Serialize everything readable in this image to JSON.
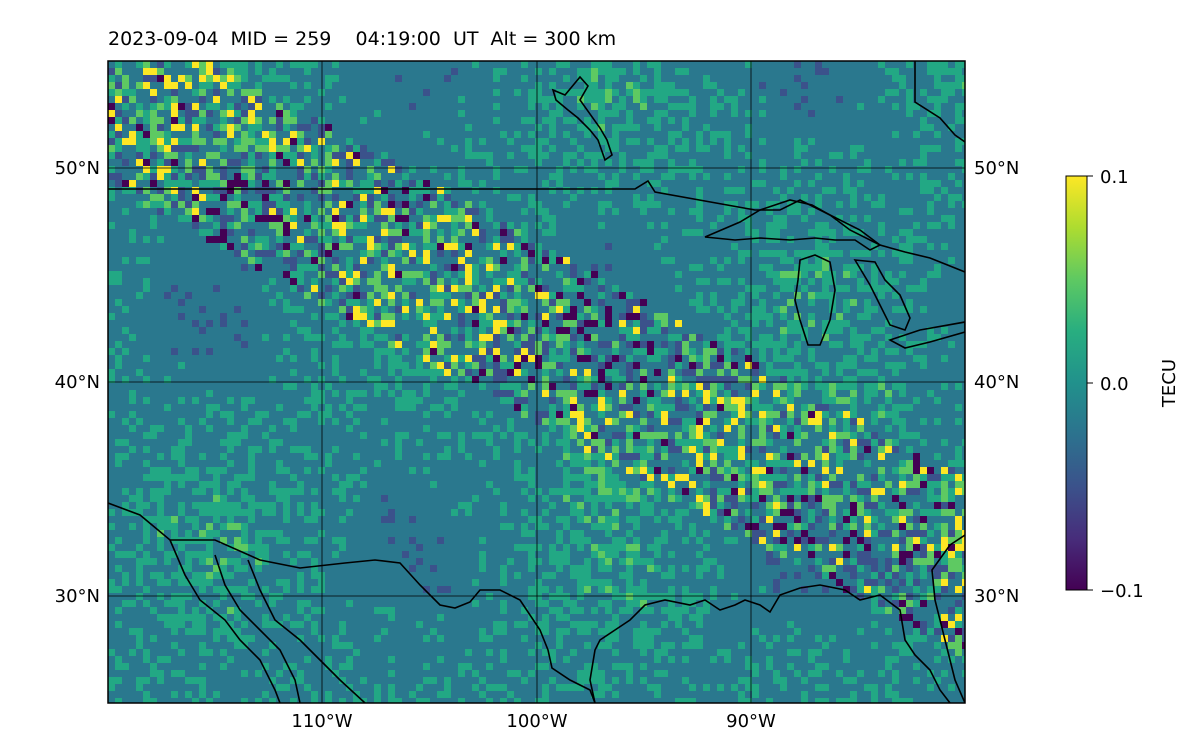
{
  "title": "2023-09-04  MID = 259    04:19:00  UT  Alt = 300 km",
  "map": {
    "lat_labels": [
      "50°N",
      "40°N",
      "30°N"
    ],
    "lon_labels": [
      "110°W",
      "100°W",
      "90°W"
    ],
    "field_colors": [
      "#440154",
      "#3b528b",
      "#21918c",
      "#2a788e",
      "#22a884",
      "#5ec962",
      "#fde725"
    ]
  },
  "colorbar": {
    "label": "TECU",
    "ticks": [
      "0.1",
      "0.0",
      "−0.1"
    ],
    "min": -0.1,
    "max": 0.1
  }
}
